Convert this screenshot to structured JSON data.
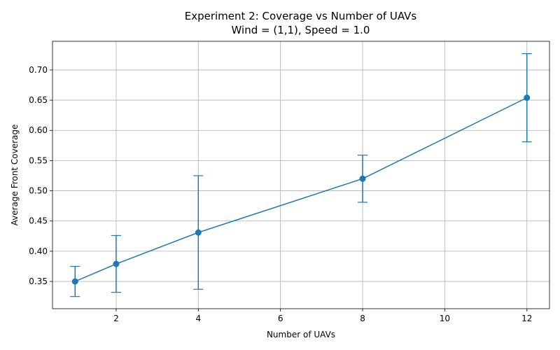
{
  "chart_data": {
    "type": "line",
    "title": "Experiment 2: Coverage vs Number of UAVs",
    "subtitle": "Wind = (1,1), Speed = 1.0",
    "xlabel": "Number of UAVs",
    "ylabel": "Average Front Coverage",
    "xlim": [
      0.45,
      12.55
    ],
    "ylim": [
      0.3049,
      0.7474
    ],
    "xticks": [
      2,
      4,
      6,
      8,
      10,
      12
    ],
    "yticks": [
      0.35,
      0.4,
      0.45,
      0.5,
      0.55,
      0.6,
      0.65,
      0.7
    ],
    "grid": true,
    "series": [
      {
        "color": "#1f77b4",
        "marker": "circle",
        "x": [
          1,
          2,
          4,
          8,
          12
        ],
        "y": [
          0.35,
          0.379,
          0.431,
          0.52,
          0.654
        ],
        "err_low": [
          0.325,
          0.332,
          0.337,
          0.481,
          0.581
        ],
        "err_high": [
          0.375,
          0.426,
          0.525,
          0.559,
          0.727
        ]
      }
    ]
  }
}
